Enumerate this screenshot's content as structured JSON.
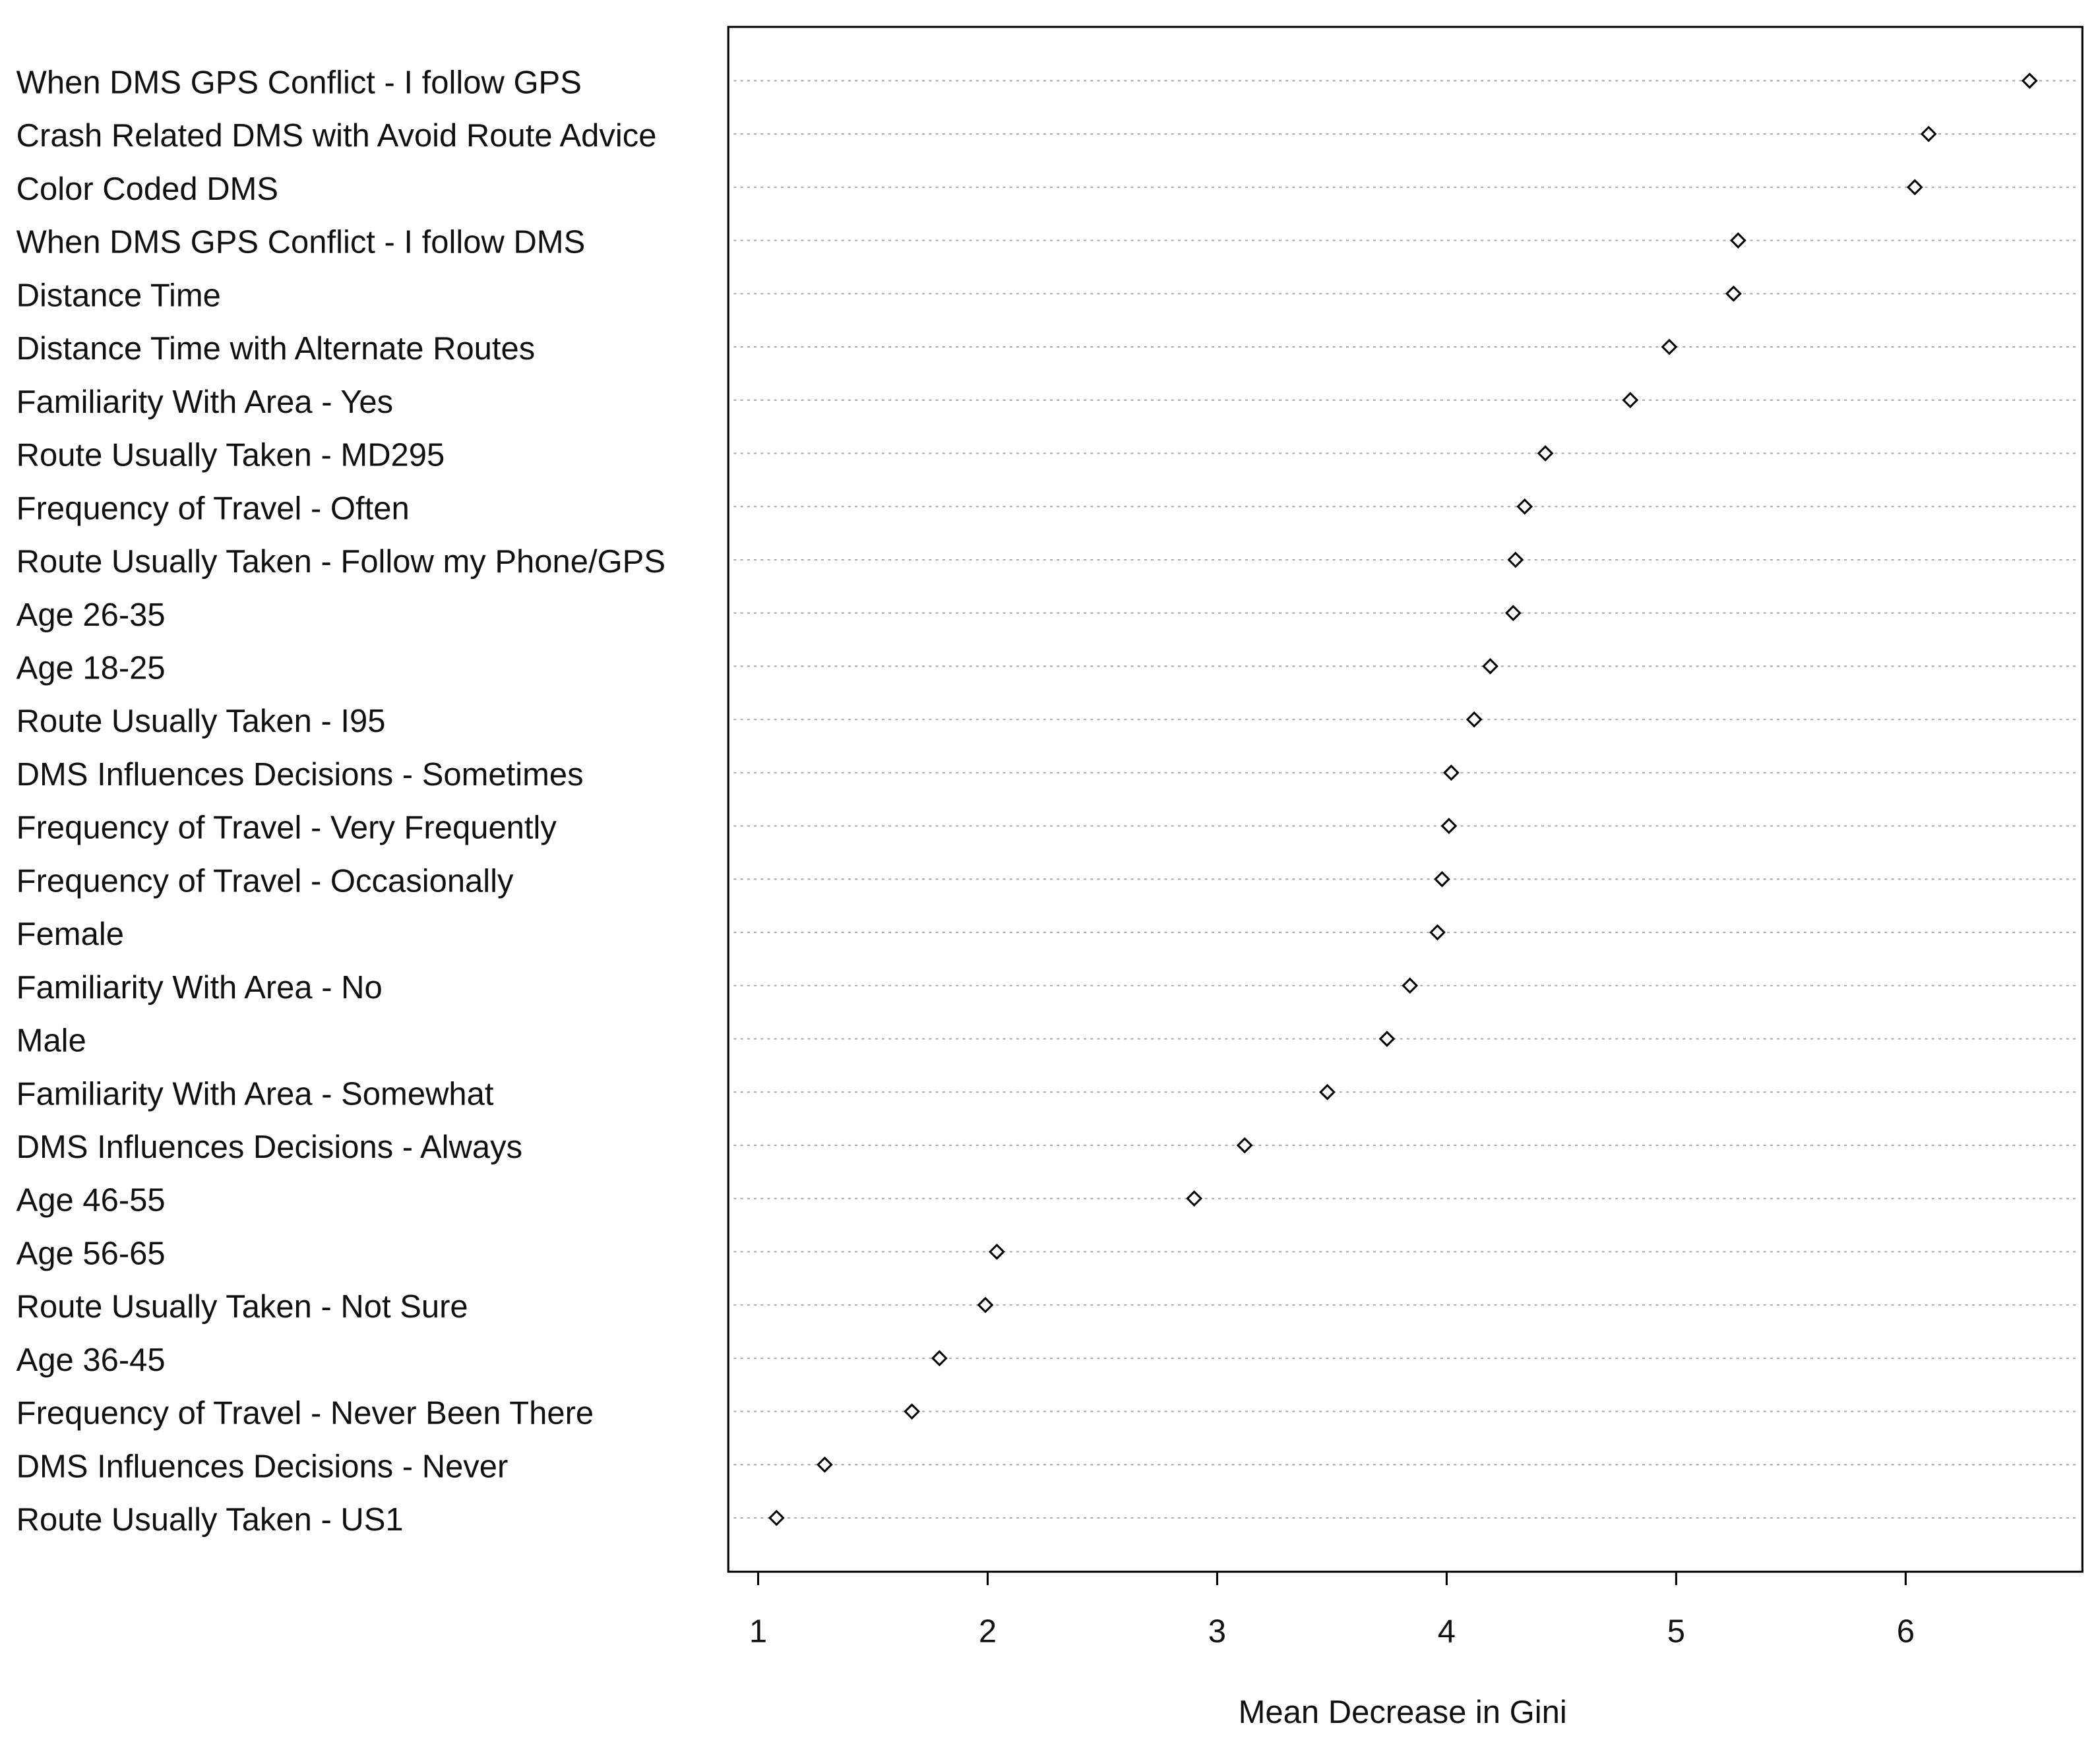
{
  "chart_data": {
    "type": "dot",
    "xlabel": "Mean Decrease in Gini",
    "categories": [
      "When DMS GPS Conflict - I follow GPS",
      "Crash Related DMS with Avoid Route Advice",
      "Color Coded DMS",
      "When DMS GPS Conflict - I follow DMS",
      "Distance Time",
      "Distance Time with Alternate Routes",
      "Familiarity With Area - Yes",
      "Route Usually Taken - MD295",
      "Frequency of Travel - Often",
      "Route Usually Taken - Follow my Phone/GPS",
      "Age 26-35",
      "Age 18-25",
      "Route Usually Taken - I95",
      "DMS Influences Decisions - Sometimes",
      "Frequency of Travel - Very Frequently",
      "Frequency of Travel - Occasionally",
      "Female",
      "Familiarity With Area - No",
      "Male",
      "Familiarity With Area - Somewhat",
      "DMS Influences Decisions - Always",
      "Age 46-55",
      "Age 56-65",
      "Route Usually Taken - Not Sure",
      "Age 36-45",
      "Frequency of Travel - Never Been There",
      "DMS Influences Decisions - Never",
      "Route Usually Taken - US1"
    ],
    "values": [
      6.54,
      6.1,
      6.04,
      5.27,
      5.25,
      4.97,
      4.8,
      4.43,
      4.34,
      4.3,
      4.29,
      4.19,
      4.12,
      4.02,
      4.01,
      3.98,
      3.96,
      3.84,
      3.74,
      3.48,
      3.12,
      2.9,
      2.04,
      1.99,
      1.79,
      1.67,
      1.29,
      1.08
    ],
    "xlim": [
      0.87,
      6.77
    ],
    "xticks": [
      1,
      2,
      3,
      4,
      5,
      6
    ]
  }
}
